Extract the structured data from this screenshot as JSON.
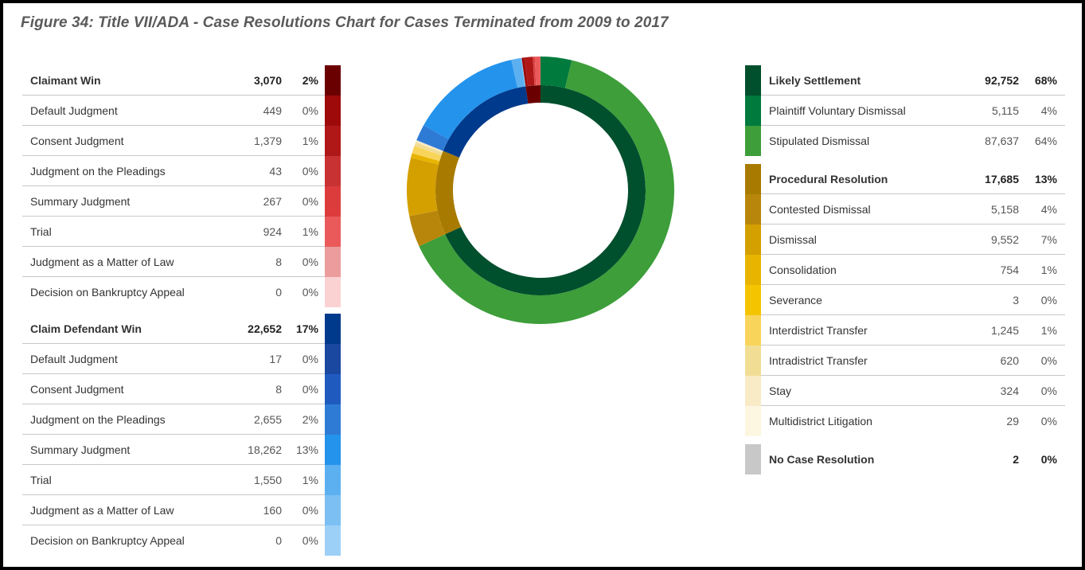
{
  "title": "Figure 34: Title VII/ADA - Case Resolutions Chart for Cases Terminated from 2009 to 2017",
  "chart_data": {
    "type": "donut",
    "inner_ring": [
      {
        "name": "Likely Settlement",
        "value": 92752,
        "color": "#004f2d"
      },
      {
        "name": "Procedural Resolution",
        "value": 17685,
        "color": "#a87b00"
      },
      {
        "name": "Claim Defendant Win",
        "value": 22652,
        "color": "#003a8c"
      },
      {
        "name": "Claimant Win",
        "value": 3070,
        "color": "#6b0000"
      },
      {
        "name": "No Case Resolution",
        "value": 2,
        "color": "#c8c8c8"
      }
    ],
    "outer_ring": [
      {
        "name": "Plaintiff Voluntary Dismissal",
        "value": 5115,
        "color": "#007a3d"
      },
      {
        "name": "Stipulated Dismissal",
        "value": 87637,
        "color": "#3d9e3a"
      },
      {
        "name": "Contested Dismissal",
        "value": 5158,
        "color": "#b8860b"
      },
      {
        "name": "Dismissal",
        "value": 9552,
        "color": "#d4a000"
      },
      {
        "name": "Consolidation",
        "value": 754,
        "color": "#e8b400"
      },
      {
        "name": "Severance",
        "value": 3,
        "color": "#f5c400"
      },
      {
        "name": "Interdistrict Transfer",
        "value": 1245,
        "color": "#f8d55a"
      },
      {
        "name": "Intradistrict Transfer",
        "value": 620,
        "color": "#f2dd94"
      },
      {
        "name": "Stay",
        "value": 324,
        "color": "#f8ebc6"
      },
      {
        "name": "Multidistrict Litigation",
        "value": 29,
        "color": "#fdf6e1"
      },
      {
        "name": "Default Judgment",
        "value": 17,
        "color": "#1a48a0"
      },
      {
        "name": "Consent Judgment",
        "value": 8,
        "color": "#1f5bbf"
      },
      {
        "name": "Judgment on the Pleadings",
        "value": 2655,
        "color": "#2e7bd6"
      },
      {
        "name": "Summary Judgment",
        "value": 18262,
        "color": "#2493ec"
      },
      {
        "name": "Trial",
        "value": 1550,
        "color": "#5cb0f0"
      },
      {
        "name": "Judgment as a Matter of Law",
        "value": 160,
        "color": "#7cbff3"
      },
      {
        "name": "Decision on Bankruptcy Appeal",
        "value": 0,
        "color": "#9dd0f6"
      },
      {
        "name": "Default Judgment",
        "value": 449,
        "color": "#9e0a0a"
      },
      {
        "name": "Consent Judgment",
        "value": 1379,
        "color": "#b01818"
      },
      {
        "name": "Judgment on the Pleadings",
        "value": 43,
        "color": "#c83232"
      },
      {
        "name": "Summary Judgment",
        "value": 267,
        "color": "#dd3c3c"
      },
      {
        "name": "Trial",
        "value": 924,
        "color": "#ea5a5a"
      },
      {
        "name": "Judgment as a Matter of Law",
        "value": 8,
        "color": "#ec9c9c"
      },
      {
        "name": "Decision on Bankruptcy Appeal",
        "value": 0,
        "color": "#fbd2d2"
      },
      {
        "name": "No Case Resolution",
        "value": 2,
        "color": "#c8c8c8"
      }
    ]
  },
  "left_legend": [
    {
      "label": "Claimant Win",
      "value": "3,070",
      "pct": "2%",
      "color": "#6b0000",
      "group": true
    },
    {
      "label": "Default Judgment",
      "value": "449",
      "pct": "0%",
      "color": "#9e0a0a"
    },
    {
      "label": "Consent Judgment",
      "value": "1,379",
      "pct": "1%",
      "color": "#b01818"
    },
    {
      "label": "Judgment on the Pleadings",
      "value": "43",
      "pct": "0%",
      "color": "#c83232"
    },
    {
      "label": "Summary Judgment",
      "value": "267",
      "pct": "0%",
      "color": "#dd3c3c"
    },
    {
      "label": "Trial",
      "value": "924",
      "pct": "1%",
      "color": "#ea5a5a"
    },
    {
      "label": "Judgment as a Matter of Law",
      "value": "8",
      "pct": "0%",
      "color": "#ec9c9c"
    },
    {
      "label": "Decision on Bankruptcy Appeal",
      "value": "0",
      "pct": "0%",
      "color": "#fbd2d2"
    },
    {
      "label": "Claim Defendant Win",
      "value": "22,652",
      "pct": "17%",
      "color": "#003a8c",
      "group": true
    },
    {
      "label": "Default Judgment",
      "value": "17",
      "pct": "0%",
      "color": "#1a48a0"
    },
    {
      "label": "Consent Judgment",
      "value": "8",
      "pct": "0%",
      "color": "#1f5bbf"
    },
    {
      "label": "Judgment on the Pleadings",
      "value": "2,655",
      "pct": "2%",
      "color": "#2e7bd6"
    },
    {
      "label": "Summary Judgment",
      "value": "18,262",
      "pct": "13%",
      "color": "#2493ec"
    },
    {
      "label": "Trial",
      "value": "1,550",
      "pct": "1%",
      "color": "#5cb0f0"
    },
    {
      "label": "Judgment as a Matter of Law",
      "value": "160",
      "pct": "0%",
      "color": "#7cbff3"
    },
    {
      "label": "Decision on Bankruptcy Appeal",
      "value": "0",
      "pct": "0%",
      "color": "#9dd0f6"
    }
  ],
  "right_legend": [
    {
      "label": "Likely Settlement",
      "value": "92,752",
      "pct": "68%",
      "color": "#004f2d",
      "group": true
    },
    {
      "label": "Plaintiff Voluntary Dismissal",
      "value": "5,115",
      "pct": "4%",
      "color": "#007a3d"
    },
    {
      "label": "Stipulated Dismissal",
      "value": "87,637",
      "pct": "64%",
      "color": "#3d9e3a"
    },
    {
      "label": "Procedural Resolution",
      "value": "17,685",
      "pct": "13%",
      "color": "#a87b00",
      "group": true
    },
    {
      "label": "Contested Dismissal",
      "value": "5,158",
      "pct": "4%",
      "color": "#b8860b"
    },
    {
      "label": "Dismissal",
      "value": "9,552",
      "pct": "7%",
      "color": "#d4a000"
    },
    {
      "label": "Consolidation",
      "value": "754",
      "pct": "1%",
      "color": "#e8b400"
    },
    {
      "label": "Severance",
      "value": "3",
      "pct": "0%",
      "color": "#f5c400"
    },
    {
      "label": "Interdistrict Transfer",
      "value": "1,245",
      "pct": "1%",
      "color": "#f8d55a"
    },
    {
      "label": "Intradistrict Transfer",
      "value": "620",
      "pct": "0%",
      "color": "#f2dd94"
    },
    {
      "label": "Stay",
      "value": "324",
      "pct": "0%",
      "color": "#f8ebc6"
    },
    {
      "label": "Multidistrict Litigation",
      "value": "29",
      "pct": "0%",
      "color": "#fdf6e1"
    },
    {
      "label": "No Case Resolution",
      "value": "2",
      "pct": "0%",
      "color": "#c8c8c8",
      "group": true
    }
  ]
}
